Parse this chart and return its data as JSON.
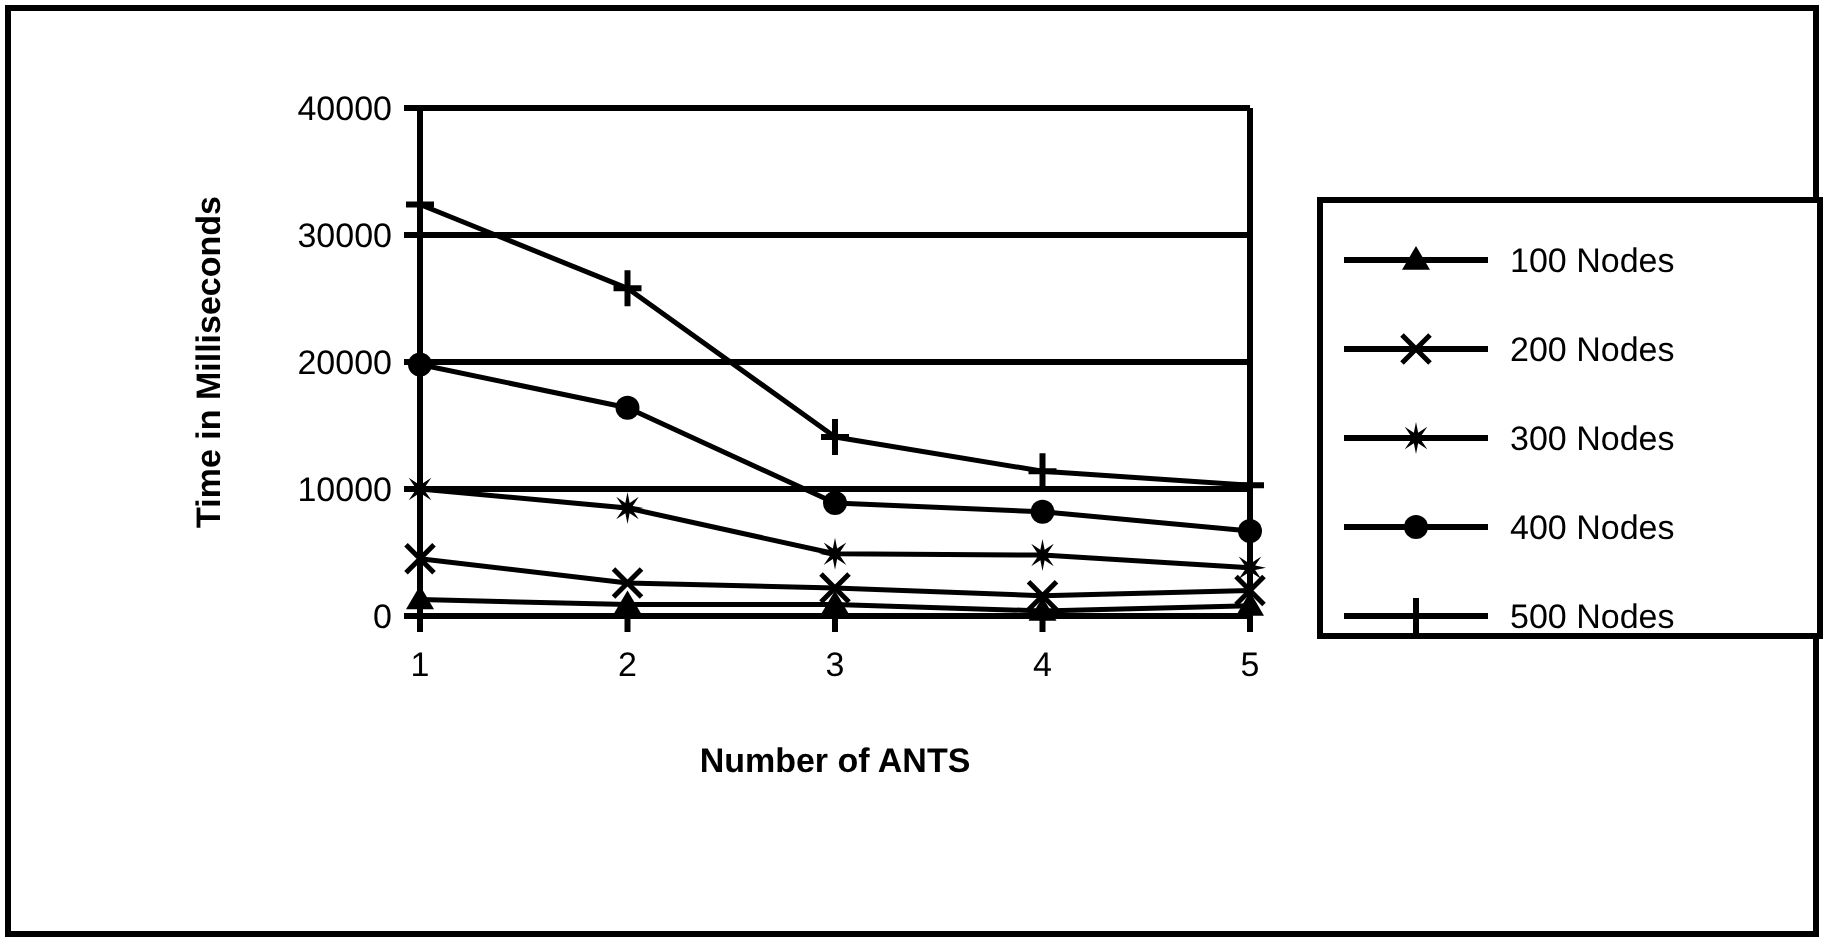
{
  "chart_data": {
    "type": "line",
    "xlabel": "Number of ANTS",
    "ylabel": "Time in Milliseconds",
    "x": [
      1,
      2,
      3,
      4,
      5
    ],
    "xlim": [
      1,
      5
    ],
    "xticks": [
      1,
      2,
      3,
      4,
      5
    ],
    "ylim": [
      0,
      40000
    ],
    "yticks": [
      0,
      10000,
      20000,
      30000,
      40000
    ],
    "grid": "y",
    "legend": "right",
    "series": [
      {
        "name": "100 Nodes",
        "color": "#000000",
        "marker": "triangle",
        "values": [
          1300,
          900,
          900,
          400,
          800
        ]
      },
      {
        "name": "200 Nodes",
        "color": "#000000",
        "marker": "x",
        "values": [
          4500,
          2600,
          2200,
          1600,
          2000
        ]
      },
      {
        "name": "300 Nodes",
        "color": "#000000",
        "marker": "star",
        "values": [
          10000,
          8500,
          4900,
          4800,
          3800
        ]
      },
      {
        "name": "400 Nodes",
        "color": "#000000",
        "marker": "circle",
        "values": [
          19800,
          16400,
          8900,
          8200,
          6700
        ]
      },
      {
        "name": "500 Nodes",
        "color": "#000000",
        "marker": "cross",
        "values": [
          32400,
          25800,
          14100,
          11400,
          10300
        ]
      }
    ]
  }
}
